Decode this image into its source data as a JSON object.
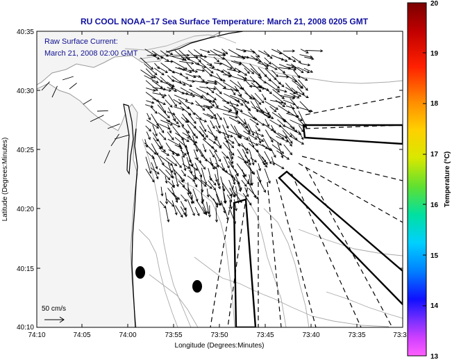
{
  "title": "RU COOL  NOAA−17  Sea Surface Temperature:  March 21, 2008 0205 GMT",
  "inset": {
    "line1": "Raw Surface Current:",
    "line2": "March 21, 2008 02:00 GMT"
  },
  "scale_label": "50 cm/s",
  "axes": {
    "xlabel": "Longitude (Degrees:Minutes)",
    "ylabel": "Latitude (Degrees:Minutes)",
    "xticks": [
      "74:10",
      "74:05",
      "74:00",
      "73:55",
      "73:50",
      "73:45",
      "73:40",
      "73:35",
      "73:3"
    ],
    "yticks": [
      "40:35",
      "40:30",
      "40:25",
      "40:20",
      "40:15",
      "40:10"
    ]
  },
  "colorbar": {
    "label": "Temperature (°C)",
    "ticks": [
      "20",
      "19",
      "18",
      "17",
      "16",
      "15",
      "14",
      "13"
    ],
    "min": 13,
    "max": 20
  },
  "colors": {
    "title": "#1010a0",
    "inset_text": "#101090",
    "land": "#f4f4f4",
    "ocean": "#ffffff",
    "contour": "#a0a0a0",
    "arrows": "#000000"
  }
}
